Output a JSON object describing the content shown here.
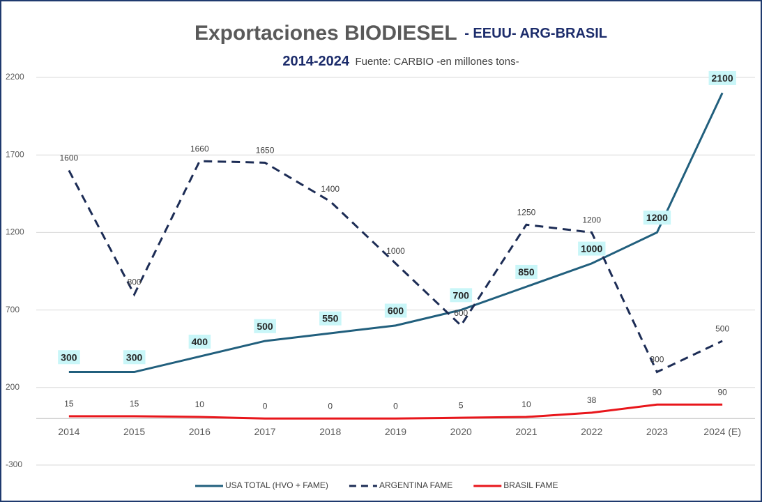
{
  "chart_data": {
    "type": "line",
    "title": [
      "Exportaciones BIODIESEL",
      "- EEUU- ARG-BRASIL"
    ],
    "subtitle": [
      "2014-2024",
      "Fuente: CARBIO -en millones tons-"
    ],
    "categories": [
      "2014",
      "2015",
      "2016",
      "2017",
      "2018",
      "2019",
      "2020",
      "2021",
      "2022",
      "2023",
      "2024 (E)"
    ],
    "series": [
      {
        "name": "USA TOTAL (HVO + FAME)",
        "color": "#215f7d",
        "label_background": "#c9f6f8",
        "values": [
          300,
          300,
          400,
          500,
          550,
          600,
          700,
          850,
          1000,
          1200,
          2100
        ]
      },
      {
        "name": "ARGENTINA  FAME",
        "color": "#1c2c55",
        "dashed": true,
        "values": [
          1600,
          800,
          1660,
          1650,
          1400,
          1000,
          600,
          1250,
          1200,
          300,
          500
        ]
      },
      {
        "name": "BRASIL FAME",
        "color": "#e8161b",
        "values": [
          15,
          15,
          10,
          0,
          0,
          0,
          5,
          10,
          38,
          90,
          90
        ]
      }
    ],
    "ylim": [
      -300,
      2200
    ],
    "yticks": [
      -300,
      200,
      700,
      1200,
      1700,
      2200
    ],
    "grid": true
  }
}
